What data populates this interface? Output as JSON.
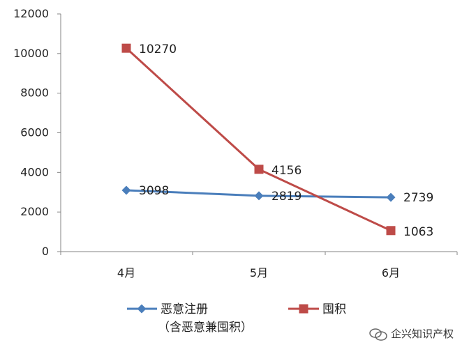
{
  "chart_data": {
    "type": "line",
    "categories": [
      "4月",
      "5月",
      "6月"
    ],
    "series": [
      {
        "name": "恶意注册",
        "name_line2": "（含恶意兼囤积）",
        "values": [
          3098,
          2819,
          2739
        ],
        "labels": [
          "3098",
          "2819",
          "2739"
        ],
        "color": "#4a7ebb",
        "marker": "diamond"
      },
      {
        "name": "囤积",
        "values": [
          10270,
          4156,
          1063
        ],
        "labels": [
          "10270",
          "4156",
          "1063"
        ],
        "color": "#be4b48",
        "marker": "square"
      }
    ],
    "yticks": [
      "0",
      "2000",
      "4000",
      "6000",
      "8000",
      "10000",
      "12000"
    ],
    "ylim": [
      0,
      12000
    ],
    "grid": false,
    "legend_position": "bottom"
  },
  "watermark": {
    "text": "企兴知识产权",
    "icon": "wechat-like-icon"
  },
  "colors": {
    "axis": "#868686",
    "text": "#222222"
  }
}
